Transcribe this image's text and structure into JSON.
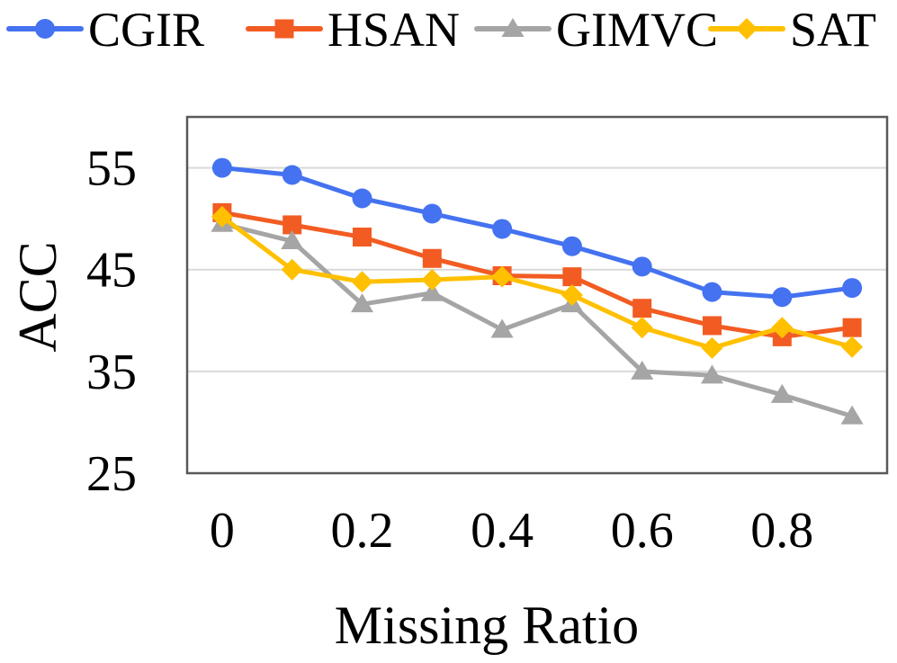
{
  "chart_data": {
    "type": "line",
    "title": "",
    "xlabel": "Missing Ratio",
    "ylabel": "ACC",
    "x": [
      0,
      0.1,
      0.2,
      0.3,
      0.4,
      0.5,
      0.6,
      0.7,
      0.8,
      0.9
    ],
    "xlim": [
      -0.05,
      0.95
    ],
    "ylim": [
      25,
      60
    ],
    "x_ticks": [
      0,
      0.2,
      0.4,
      0.6,
      0.8
    ],
    "x_tick_labels": [
      "0",
      "0.2",
      "0.4",
      "0.6",
      "0.8"
    ],
    "y_ticks": [
      25,
      35,
      45,
      55
    ],
    "y_tick_labels": [
      "25",
      "35",
      "45",
      "55"
    ],
    "grid": true,
    "legend_position": "top",
    "series": [
      {
        "name": "CGIR",
        "color": "#4472f0",
        "marker": "circle",
        "values": [
          55.0,
          54.3,
          52.0,
          50.5,
          49.0,
          47.3,
          45.3,
          42.8,
          42.3,
          43.2
        ]
      },
      {
        "name": "HSAN",
        "color": "#f25c22",
        "marker": "square",
        "values": [
          50.6,
          49.4,
          48.2,
          46.1,
          44.4,
          44.3,
          41.2,
          39.5,
          38.4,
          39.3
        ]
      },
      {
        "name": "GIMVC",
        "color": "#a5a5a5",
        "marker": "triangle",
        "values": [
          49.5,
          47.8,
          41.6,
          42.7,
          39.1,
          41.6,
          35.0,
          34.6,
          32.7,
          30.6
        ]
      },
      {
        "name": "SAT",
        "color": "#ffc000",
        "marker": "diamond",
        "values": [
          50.2,
          45.0,
          43.8,
          44.0,
          44.3,
          42.5,
          39.3,
          37.3,
          39.3,
          37.4
        ]
      }
    ]
  }
}
